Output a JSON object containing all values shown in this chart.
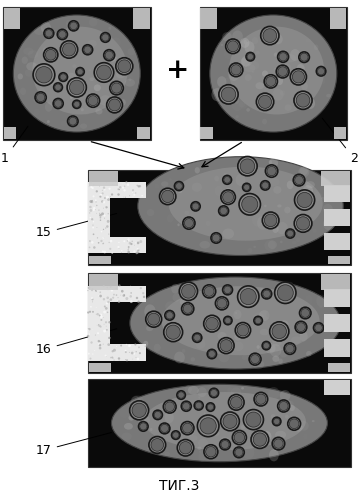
{
  "title": "ΤИГ.3",
  "label1": "1",
  "label2": "2",
  "label15": "15",
  "label16": "16",
  "label17": "17",
  "plus_sign": "+",
  "bg_color": "#ffffff",
  "fig_bg": "#000000",
  "disk_color_light": "#aaaaaa",
  "disk_color_dark": "#666666",
  "circle_edge": "#222222",
  "gray_patch": "#cccccc",
  "title_fontsize": 10,
  "label_fontsize": 9
}
